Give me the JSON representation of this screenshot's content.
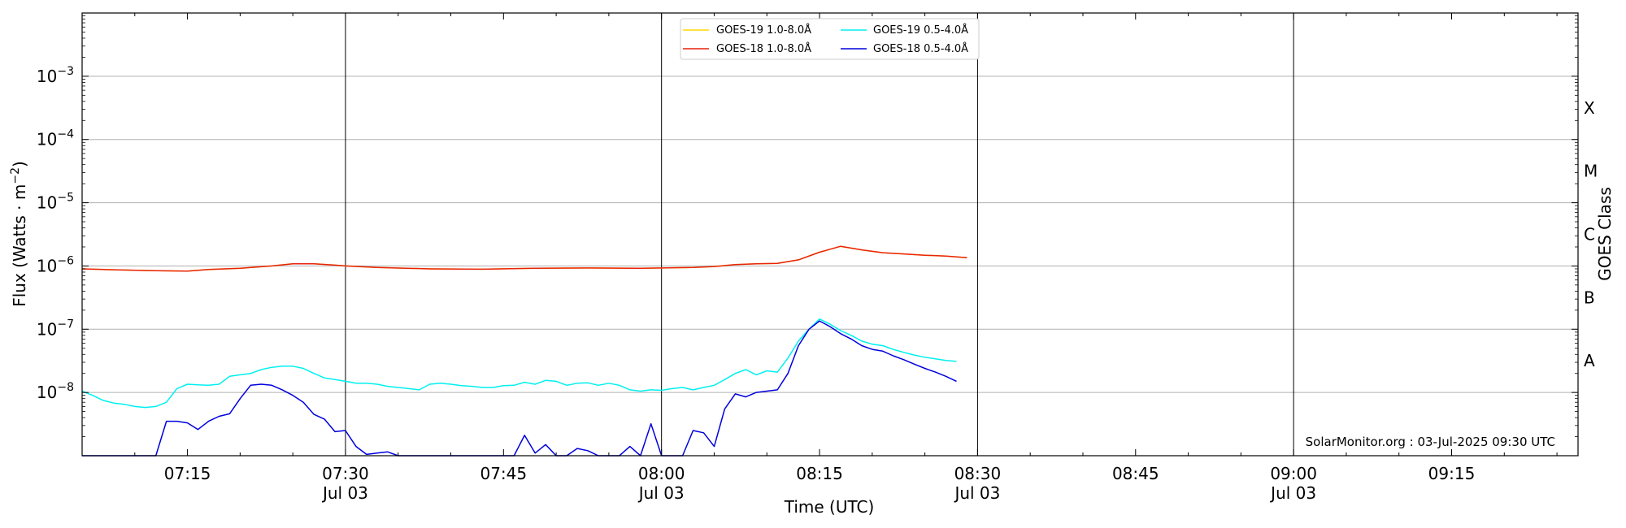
{
  "chart_data": {
    "type": "line",
    "xlabel": "Time (UTC)",
    "ylabel": "Flux (Watts · m",
    "ylabel_sup": "−2",
    "ylabel_close": ")",
    "right_label": "GOES Class",
    "yscale": "log",
    "ylim": [
      1e-09,
      0.01
    ],
    "xlim_minutes": [
      425,
      567
    ],
    "grid": "horizontal",
    "legend_location": "top-center",
    "watermark": "SolarMonitor.org : 03-Jul-2025 09:30 UTC",
    "y_ticks": [
      {
        "v": 1e-08,
        "base": "10",
        "exp": "−8"
      },
      {
        "v": 1e-07,
        "base": "10",
        "exp": "−7"
      },
      {
        "v": 1e-06,
        "base": "10",
        "exp": "−6"
      },
      {
        "v": 1e-05,
        "base": "10",
        "exp": "−5"
      },
      {
        "v": 0.0001,
        "base": "10",
        "exp": "−4"
      },
      {
        "v": 0.001,
        "base": "10",
        "exp": "−3"
      }
    ],
    "x_ticks": [
      {
        "t": 435,
        "label": "07:15",
        "date": ""
      },
      {
        "t": 450,
        "label": "07:30",
        "date": "Jul 03"
      },
      {
        "t": 465,
        "label": "07:45",
        "date": ""
      },
      {
        "t": 480,
        "label": "08:00",
        "date": "Jul 03"
      },
      {
        "t": 495,
        "label": "08:15",
        "date": ""
      },
      {
        "t": 510,
        "label": "08:30",
        "date": "Jul 03"
      },
      {
        "t": 525,
        "label": "08:45",
        "date": ""
      },
      {
        "t": 540,
        "label": "09:00",
        "date": "Jul 03"
      },
      {
        "t": 555,
        "label": "09:15",
        "date": ""
      }
    ],
    "vlines_minutes": [
      450,
      480,
      510,
      540
    ],
    "goes_classes": [
      {
        "label": "A",
        "v": 3.16e-08
      },
      {
        "label": "B",
        "v": 3.16e-07
      },
      {
        "label": "C",
        "v": 3.16e-06
      },
      {
        "label": "M",
        "v": 3.16e-05
      },
      {
        "label": "X",
        "v": 0.000316
      }
    ],
    "series": [
      {
        "name": "GOES-19 1.0-8.0Å",
        "color": "#FFD700",
        "x": [
          425,
          428,
          432,
          435,
          437,
          440,
          443,
          445,
          447,
          449,
          450,
          453,
          458,
          463,
          468,
          473,
          478,
          480,
          483,
          485,
          487,
          489,
          491,
          493,
          495,
          497,
          499,
          501,
          503,
          505,
          507,
          509
        ],
        "y": [
          9e-07,
          8.7e-07,
          8.4e-07,
          8.3e-07,
          8.8e-07,
          9.2e-07,
          1e-06,
          1.08e-06,
          1.08e-06,
          1.03e-06,
          1e-06,
          9.5e-07,
          9e-07,
          8.9e-07,
          9.2e-07,
          9.3e-07,
          9.2e-07,
          9.3e-07,
          9.5e-07,
          9.8e-07,
          1.05e-06,
          1.08e-06,
          1.1e-06,
          1.25e-06,
          1.65e-06,
          2.05e-06,
          1.8e-06,
          1.62e-06,
          1.55e-06,
          1.48e-06,
          1.43e-06,
          1.35e-06
        ]
      },
      {
        "name": "GOES-18 1.0-8.0Å",
        "color": "#E8220C",
        "x": [
          425,
          428,
          432,
          435,
          437,
          440,
          443,
          445,
          447,
          449,
          450,
          453,
          458,
          463,
          468,
          473,
          478,
          480,
          483,
          485,
          487,
          489,
          491,
          493,
          495,
          497,
          499,
          501,
          503,
          505,
          507,
          509
        ],
        "y": [
          9e-07,
          8.7e-07,
          8.4e-07,
          8.3e-07,
          8.8e-07,
          9.2e-07,
          1e-06,
          1.08e-06,
          1.08e-06,
          1.03e-06,
          1e-06,
          9.5e-07,
          9e-07,
          8.9e-07,
          9.2e-07,
          9.3e-07,
          9.2e-07,
          9.3e-07,
          9.5e-07,
          9.8e-07,
          1.05e-06,
          1.08e-06,
          1.1e-06,
          1.25e-06,
          1.65e-06,
          2.05e-06,
          1.8e-06,
          1.62e-06,
          1.55e-06,
          1.48e-06,
          1.43e-06,
          1.35e-06
        ]
      },
      {
        "name": "GOES-19 0.5-4.0Å",
        "color": "#00F0F0",
        "x": [
          425,
          426,
          427,
          428,
          429,
          430,
          431,
          432,
          433,
          434,
          435,
          436,
          437,
          438,
          439,
          440,
          441,
          442,
          443,
          444,
          445,
          446,
          447,
          448,
          449,
          450,
          451,
          452,
          453,
          454,
          455,
          456,
          457,
          458,
          459,
          460,
          461,
          462,
          463,
          464,
          465,
          466,
          467,
          468,
          469,
          470,
          471,
          472,
          473,
          474,
          475,
          476,
          477,
          478,
          479,
          480,
          481,
          482,
          483,
          484,
          485,
          486,
          487,
          488,
          489,
          490,
          491,
          492,
          493,
          494,
          495,
          496,
          497,
          498,
          499,
          500,
          501,
          502,
          503,
          504,
          505,
          506,
          507,
          508
        ],
        "y": [
          1.05e-08,
          9e-09,
          7.5e-09,
          6.8e-09,
          6.5e-09,
          6e-09,
          5.8e-09,
          6e-09,
          7e-09,
          1.15e-08,
          1.35e-08,
          1.32e-08,
          1.3e-08,
          1.35e-08,
          1.8e-08,
          1.9e-08,
          2e-08,
          2.3e-08,
          2.5e-08,
          2.6e-08,
          2.6e-08,
          2.4e-08,
          2e-08,
          1.7e-08,
          1.6e-08,
          1.5e-08,
          1.4e-08,
          1.4e-08,
          1.35e-08,
          1.25e-08,
          1.2e-08,
          1.15e-08,
          1.1e-08,
          1.35e-08,
          1.4e-08,
          1.35e-08,
          1.28e-08,
          1.25e-08,
          1.2e-08,
          1.2e-08,
          1.28e-08,
          1.3e-08,
          1.45e-08,
          1.35e-08,
          1.55e-08,
          1.5e-08,
          1.3e-08,
          1.4e-08,
          1.42e-08,
          1.3e-08,
          1.4e-08,
          1.3e-08,
          1.1e-08,
          1.05e-08,
          1.1e-08,
          1.08e-08,
          1.15e-08,
          1.2e-08,
          1.1e-08,
          1.2e-08,
          1.3e-08,
          1.6e-08,
          2e-08,
          2.3e-08,
          1.9e-08,
          2.2e-08,
          2.1e-08,
          3.5e-08,
          6.5e-08,
          1e-07,
          1.45e-07,
          1.2e-07,
          9.5e-08,
          8e-08,
          6.5e-08,
          5.8e-08,
          5.5e-08,
          4.8e-08,
          4.3e-08,
          3.9e-08,
          3.6e-08,
          3.4e-08,
          3.2e-08,
          3.1e-08
        ]
      },
      {
        "name": "GOES-18 0.5-4.0Å",
        "color": "#0000DD",
        "x": [
          425,
          426,
          427,
          428,
          429,
          430,
          431,
          432,
          433,
          434,
          435,
          436,
          437,
          438,
          439,
          440,
          441,
          442,
          443,
          444,
          445,
          446,
          447,
          448,
          449,
          450,
          451,
          452,
          453,
          454,
          455,
          456,
          457,
          458,
          459,
          460,
          461,
          462,
          463,
          464,
          465,
          466,
          467,
          468,
          469,
          470,
          471,
          472,
          473,
          474,
          475,
          476,
          477,
          478,
          479,
          480,
          481,
          482,
          483,
          484,
          485,
          486,
          487,
          488,
          489,
          490,
          491,
          492,
          493,
          494,
          495,
          496,
          497,
          498,
          499,
          500,
          501,
          502,
          503,
          504,
          505,
          506,
          507,
          508
        ],
        "y": [
          1e-09,
          1e-09,
          1e-09,
          1e-09,
          1e-09,
          1e-09,
          1e-09,
          1e-09,
          3.5e-09,
          3.5e-09,
          3.3e-09,
          2.6e-09,
          3.5e-09,
          4.2e-09,
          4.6e-09,
          8e-09,
          1.3e-08,
          1.35e-08,
          1.3e-08,
          1.1e-08,
          9e-09,
          7e-09,
          4.5e-09,
          3.8e-09,
          2.4e-09,
          2.5e-09,
          1.4e-09,
          1.05e-09,
          1.1e-09,
          1.15e-09,
          1e-09,
          1e-09,
          1e-09,
          1e-09,
          1e-09,
          1e-09,
          1e-09,
          1e-09,
          1e-09,
          1e-09,
          1e-09,
          1e-09,
          2.1e-09,
          1.1e-09,
          1.5e-09,
          1e-09,
          1e-09,
          1.3e-09,
          1.2e-09,
          1e-09,
          1e-09,
          1e-09,
          1.4e-09,
          1e-09,
          3.2e-09,
          1e-09,
          1e-09,
          1e-09,
          2.5e-09,
          2.3e-09,
          1.4e-09,
          5.5e-09,
          9.5e-09,
          8.5e-09,
          1e-08,
          1.05e-08,
          1.1e-08,
          2e-08,
          5.5e-08,
          1e-07,
          1.35e-07,
          1.1e-07,
          8.5e-08,
          7e-08,
          5.5e-08,
          4.8e-08,
          4.5e-08,
          3.8e-08,
          3.3e-08,
          2.8e-08,
          2.4e-08,
          2.1e-08,
          1.8e-08,
          1.5e-08
        ]
      }
    ]
  }
}
